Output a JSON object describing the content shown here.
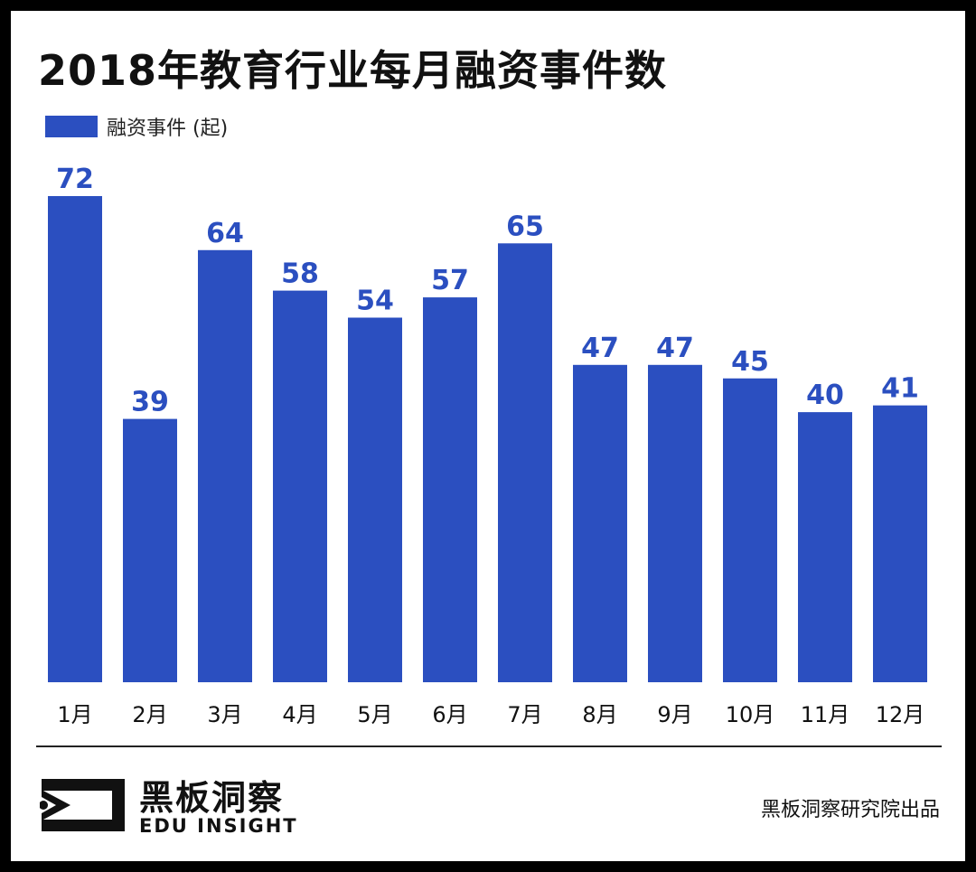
{
  "chart_data": {
    "type": "bar",
    "title": "2018年教育行业每月融资事件数",
    "categories": [
      "1月",
      "2月",
      "3月",
      "4月",
      "5月",
      "6月",
      "7月",
      "8月",
      "9月",
      "10月",
      "11月",
      "12月"
    ],
    "series": [
      {
        "name": "融资事件 (起)",
        "values": [
          72,
          39,
          64,
          58,
          54,
          57,
          65,
          47,
          47,
          45,
          40,
          41
        ]
      }
    ],
    "ylim": [
      0,
      72
    ],
    "grid": false,
    "legend_position": "top-left",
    "data_labels": true,
    "colors": {
      "bar": "#2b4fc0",
      "label": "#2b4fc0",
      "text": "#111111"
    }
  },
  "brand": {
    "name_cn": "黑板洞察",
    "name_en": "EDU INSIGHT",
    "icon": "eye-logo-icon"
  },
  "source": "黑板洞察研究院出品"
}
